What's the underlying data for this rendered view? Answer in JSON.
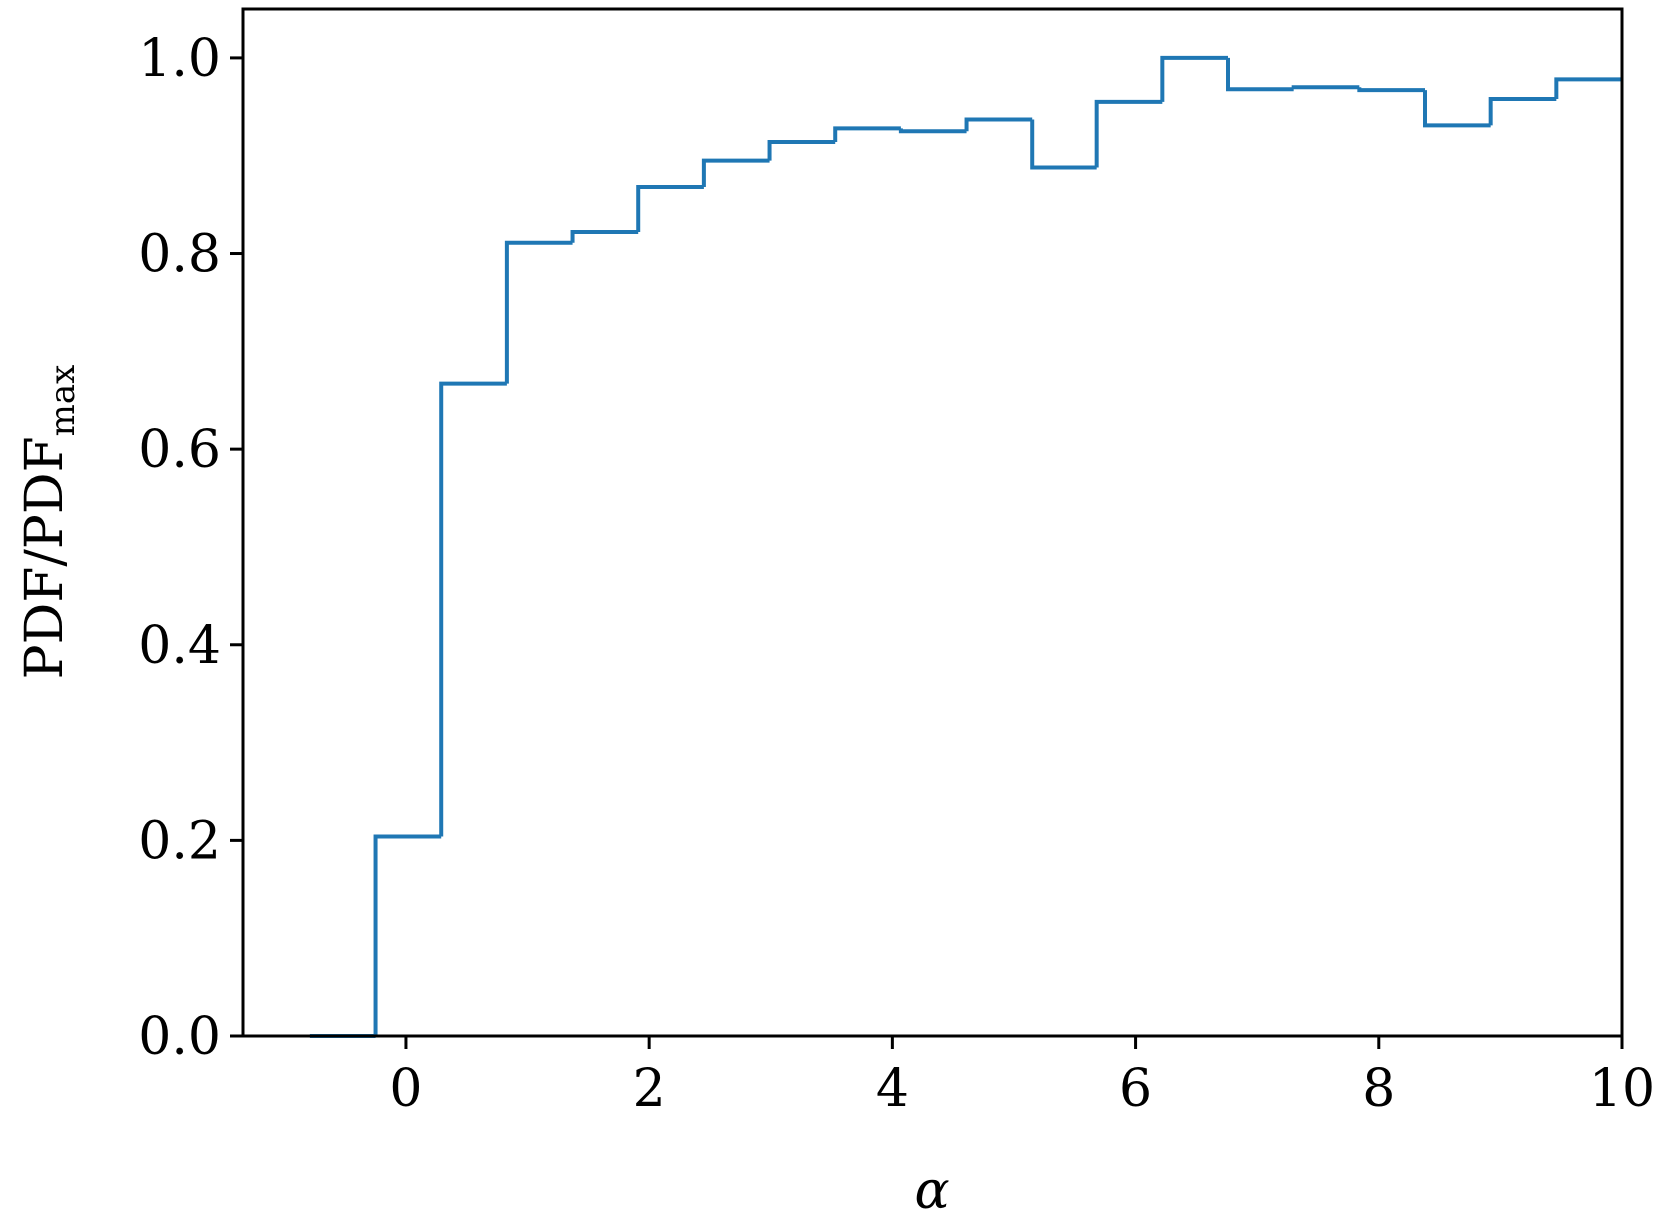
{
  "chart_data": {
    "type": "histogram",
    "xlabel": "α",
    "ylabel": {
      "text": "PDF/PDF",
      "subscript": "max"
    },
    "bins": [
      -0.79,
      -0.25,
      0.29,
      0.83,
      1.37,
      1.91,
      2.45,
      2.99,
      3.53,
      4.07,
      4.61,
      5.15,
      5.68,
      6.22,
      6.76,
      7.3,
      7.84,
      8.38,
      8.92,
      9.46,
      10.0
    ],
    "values": [
      0,
      0.204,
      0.667,
      0.811,
      0.822,
      0.868,
      0.895,
      0.914,
      0.928,
      0.925,
      0.937,
      0.888,
      0.955,
      1.0,
      0.968,
      0.97,
      0.967,
      0.931,
      0.958,
      0.978
    ],
    "color": "#1f77b4",
    "xlim": [
      -1.34,
      10
    ],
    "ylim": [
      0,
      1.05
    ],
    "xticks": [
      0,
      2,
      4,
      6,
      8,
      10
    ],
    "yticks": [
      {
        "value": 0,
        "label": "0.0"
      },
      {
        "value": 0.2,
        "label": "0.2"
      },
      {
        "value": 0.4,
        "label": "0.4"
      },
      {
        "value": 0.6,
        "label": "0.6"
      },
      {
        "value": 0.8,
        "label": "0.8"
      },
      {
        "value": 1.0,
        "label": "1.0"
      }
    ]
  }
}
